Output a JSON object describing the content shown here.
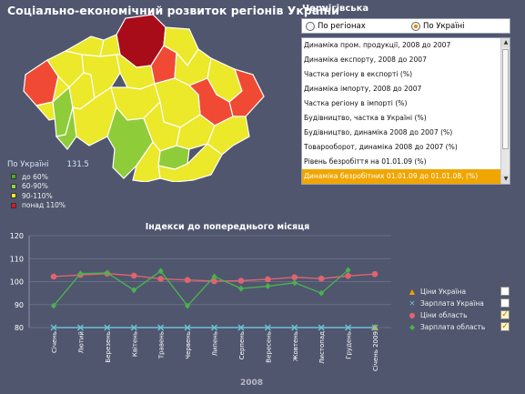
{
  "header": {
    "title": "Соціально-економічний розвиток регіонів України"
  },
  "legend": {
    "label": "По Україні",
    "value": "131.5",
    "items": [
      {
        "label": "до 60%",
        "color": "#46b020"
      },
      {
        "label": "60-90%",
        "color": "#8fd63c"
      },
      {
        "label": "90-110%",
        "color": "#f2ee26"
      },
      {
        "label": "понад 110%",
        "color": "#d8182a"
      }
    ]
  },
  "map": {
    "colors": {
      "red": "#f04a34",
      "darkred": "#a80c18",
      "yellow": "#ece82a",
      "green": "#8fcc3a",
      "border": "#ffffff"
    },
    "selected_region": "Чернігівська"
  },
  "panel": {
    "region_title": "Чернігівська",
    "radio_regions": "По регіонах",
    "radio_ukraine": "По Україні",
    "selected_radio": "ukraine",
    "indicators": [
      "Динаміка пром. продукції, 2008 до 2007",
      "Динаміка експорту, 2008 до 2007",
      "Частка регіону в експорті (%)",
      "Динаміка імпорту, 2008 до 2007",
      "Частка регіону в імпорті (%)",
      "Будівництво, частка в Україні (%)",
      "Будівництво, динаміка 2008 до 2007 (%)",
      "Товарооборот, динаміка 2008 до 2007 (%)",
      "Рівень безробіття на 01.01.09 (%)",
      "Динаміка безробітних  01.01.09 до 01.01.08, (%)"
    ],
    "selected_index": 9
  },
  "chart_data": {
    "type": "line",
    "title": "Індекси до попереднього місяця",
    "xlabel": "2008",
    "ylim": [
      80,
      120
    ],
    "yticks": [
      80,
      90,
      100,
      110,
      120
    ],
    "grid": true,
    "categories": [
      "Січень",
      "Лютий",
      "Березень",
      "Квітень",
      "Травень",
      "Червень",
      "Липень",
      "Серпень",
      "Вересень",
      "Жовтень",
      "Листопад",
      "Грудень",
      "Січень 2009"
    ],
    "series": [
      {
        "name": "Ціни Україна",
        "color": "#f0a000",
        "marker": "triangle",
        "checked": false,
        "values": [
          null,
          null,
          null,
          null,
          null,
          null,
          null,
          null,
          null,
          null,
          null,
          null,
          80
        ]
      },
      {
        "name": "Зарплата Україна",
        "color": "#6fc2d8",
        "marker": "x",
        "checked": false,
        "values": [
          80,
          80,
          80,
          80,
          80,
          80,
          80,
          80,
          80,
          80,
          80,
          80,
          80
        ]
      },
      {
        "name": "Ціни область",
        "color": "#e0646e",
        "marker": "circle",
        "checked": true,
        "values": [
          102.2,
          102.9,
          103.5,
          102.6,
          101.2,
          100.7,
          100.2,
          100.4,
          101.0,
          101.9,
          101.3,
          102.5,
          103.3
        ]
      },
      {
        "name": "Зарплата область",
        "color": "#4cb050",
        "marker": "diamond",
        "checked": true,
        "values": [
          89.5,
          103.5,
          103.8,
          96.3,
          104.6,
          89.5,
          102.2,
          97.0,
          98.0,
          99.5,
          95.0,
          105.0,
          null
        ]
      }
    ]
  }
}
